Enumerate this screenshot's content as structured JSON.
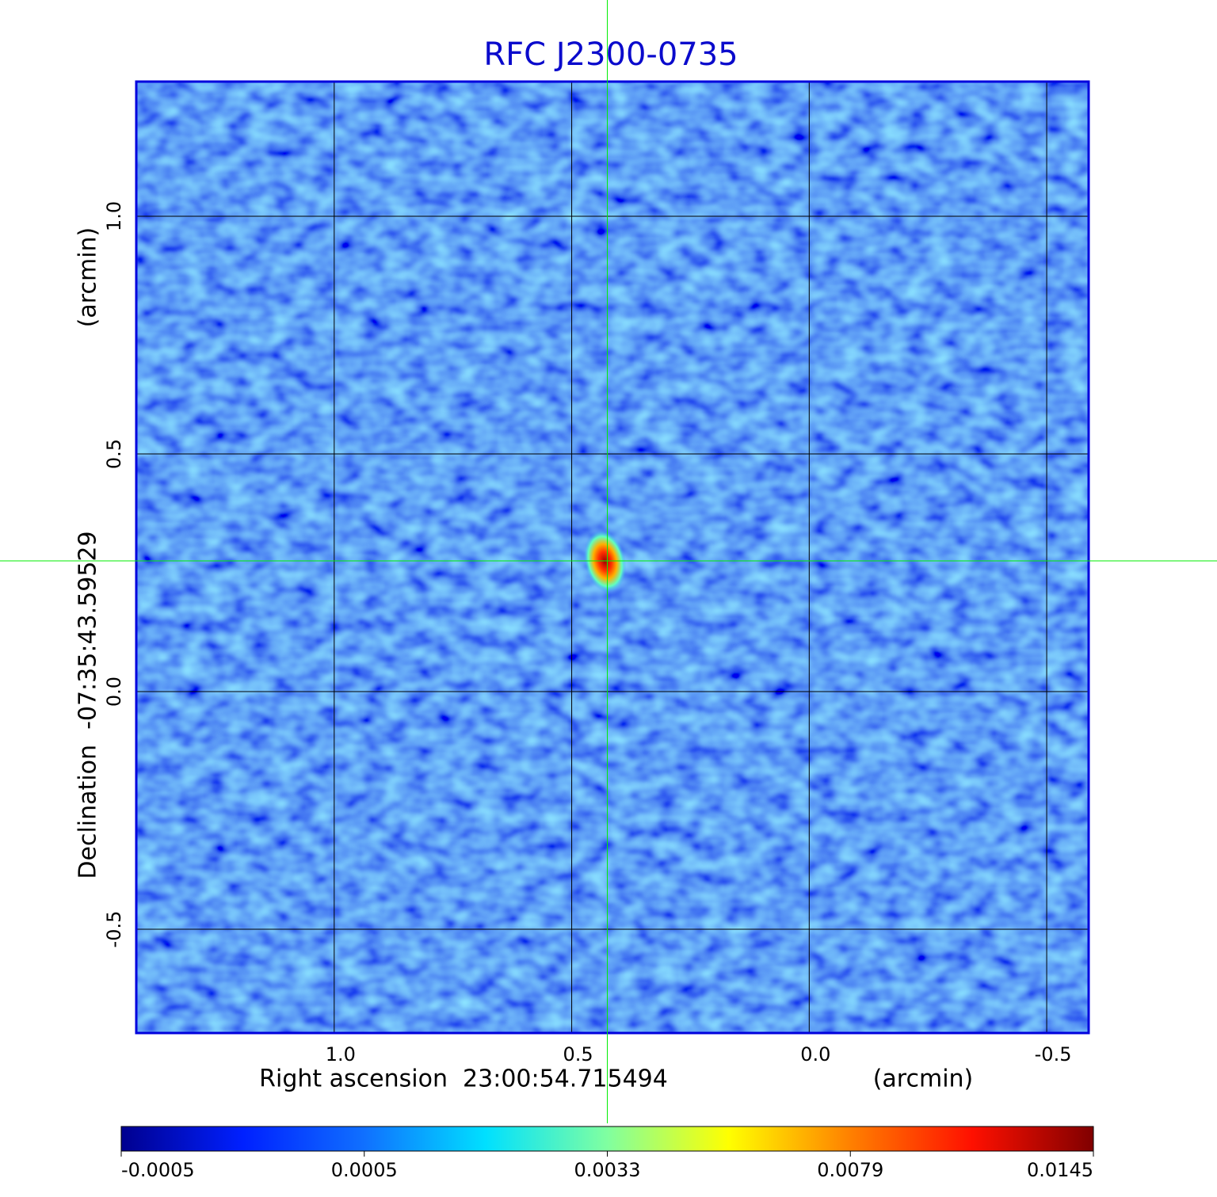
{
  "chart_data": {
    "type": "image",
    "title": "RFC J2300-0735",
    "x_label": "Right ascension  23:00:54.715494",
    "x_unit": "(arcmin)",
    "y_label": "Declination  -07:35:43.59529",
    "y_unit": "(arcmin)",
    "xlim": [
      1.4167,
      -0.5883
    ],
    "ylim": [
      -0.7183,
      1.2833
    ],
    "xticks": [
      {
        "value": 1.0,
        "label": "1.0"
      },
      0.5,
      {
        "value": 0.0,
        "label": "0.0"
      },
      -0.5
    ],
    "yticks": [
      {
        "value": 1.0,
        "label": "1.0"
      },
      0.5,
      {
        "value": 0.0,
        "label": "0.0"
      },
      -0.5
    ],
    "grid": true,
    "source": {
      "x": 0.425,
      "y": 0.275
    },
    "colorbar": {
      "ticks": [
        -0.0005,
        0.0005,
        0.0033,
        0.0079,
        0.0145
      ],
      "colormap": [
        "#00008f",
        "#0020ff",
        "#1070ff",
        "#00e0ff",
        "#80ffa0",
        "#ffff00",
        "#ff8000",
        "#ff1000",
        "#800000"
      ]
    },
    "title_color": "#0a0acc",
    "frame_color": "#0000dd",
    "crosshair_color": "#00ee00"
  }
}
